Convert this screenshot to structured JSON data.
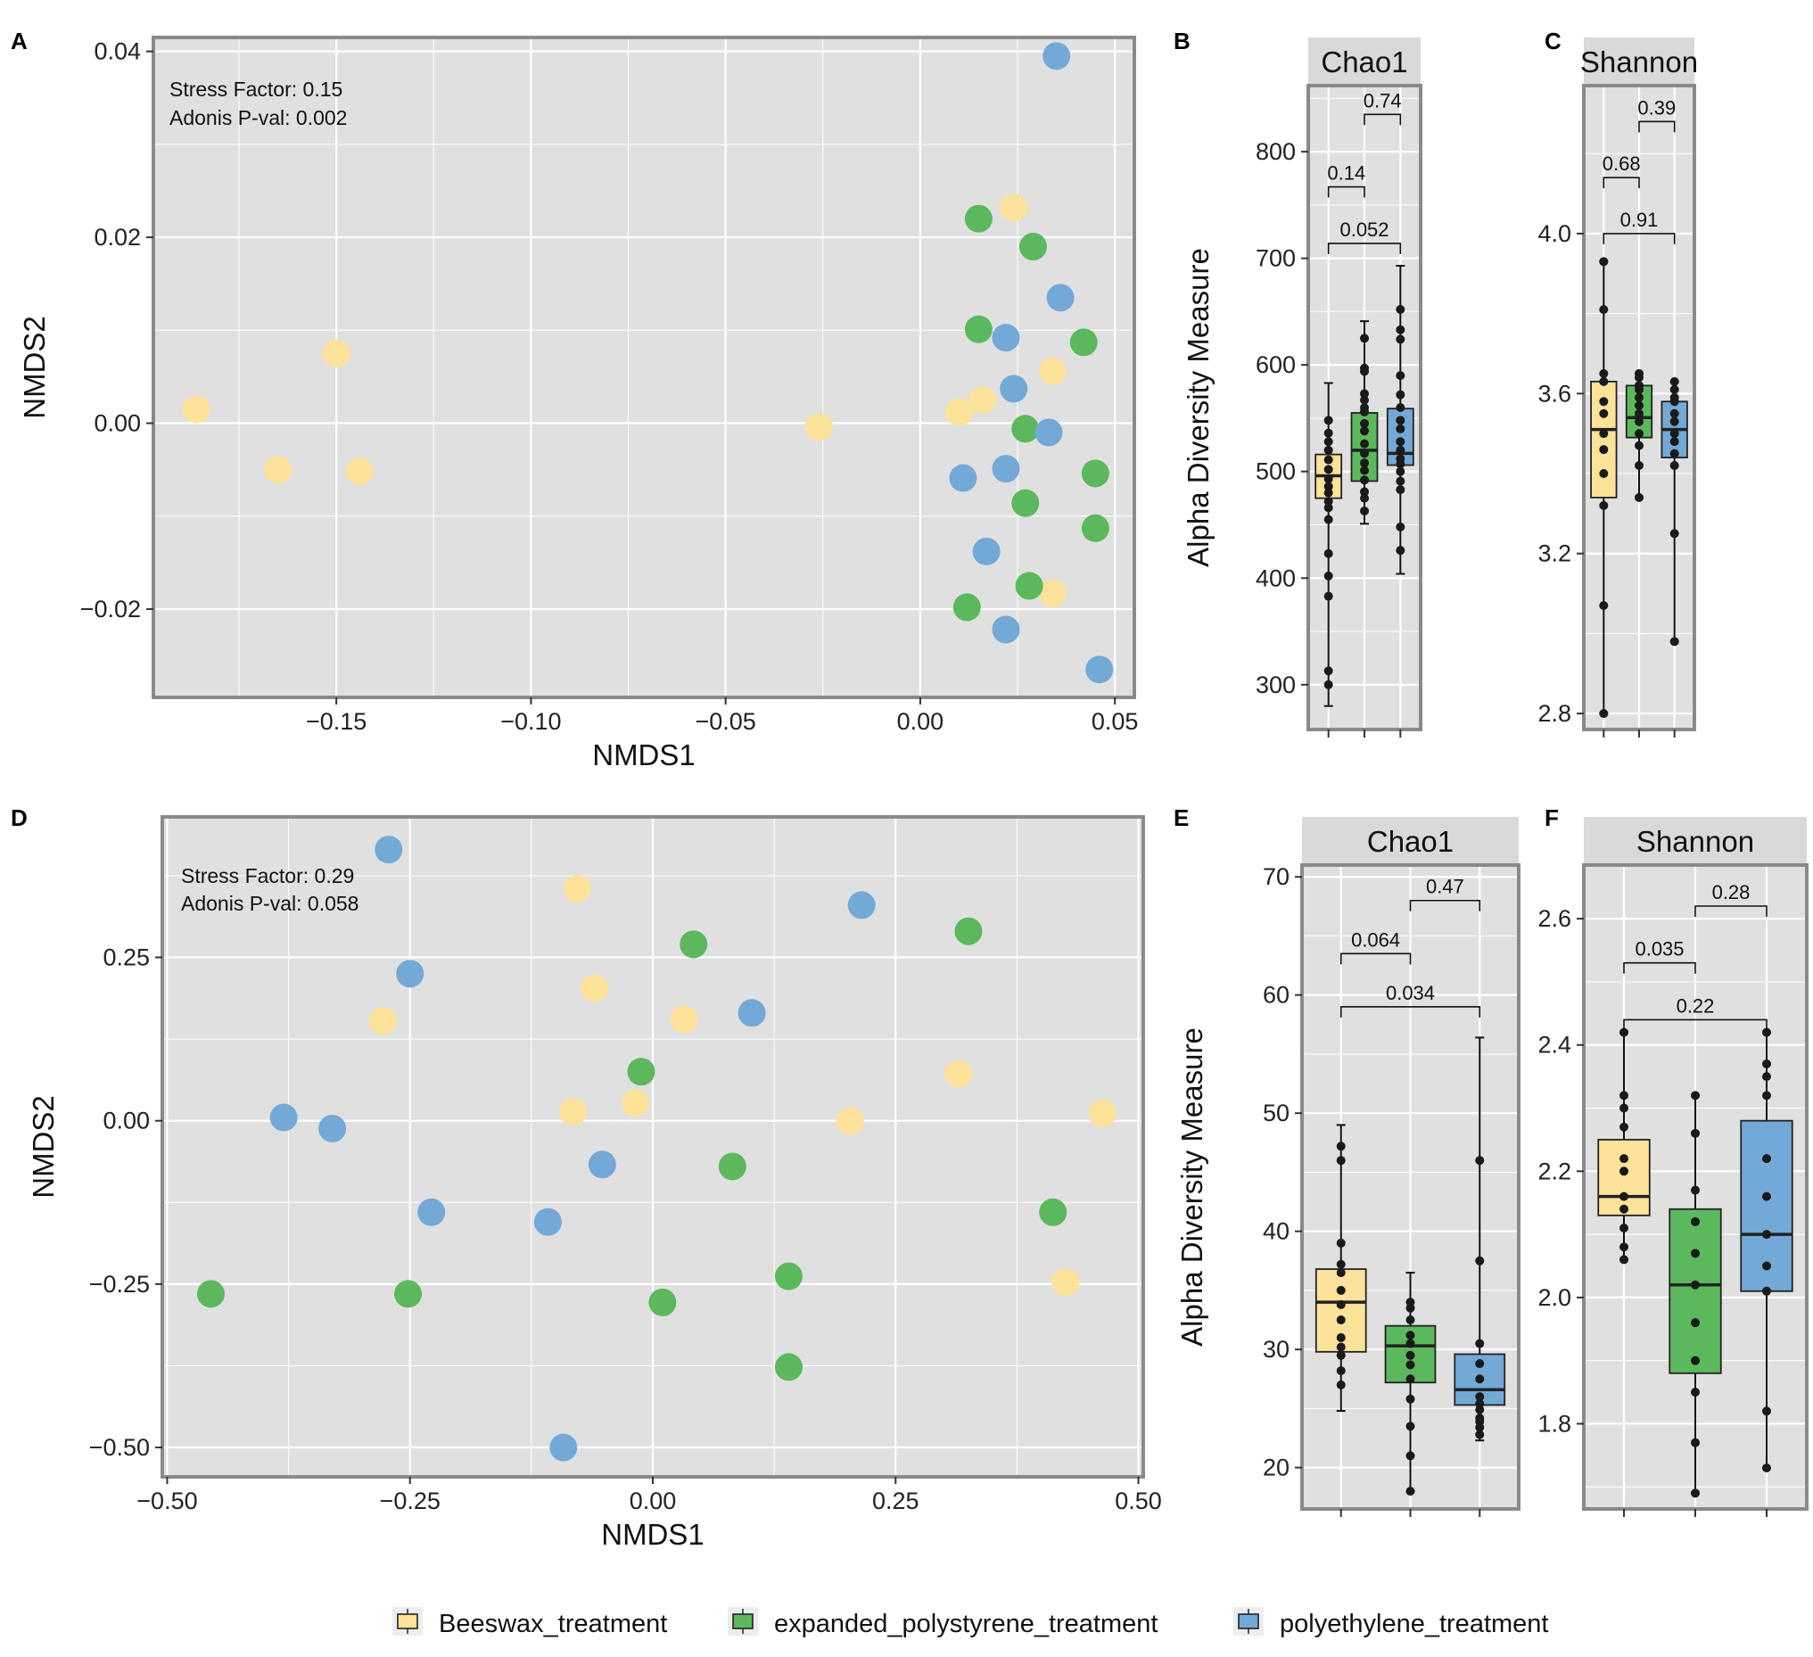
{
  "colors": {
    "Beeswax_treatment": "#FDE29A",
    "expanded_polystyrene_treatment": "#5CB85C",
    "polyethylene_treatment": "#73A9D6",
    "panel_bg": "#E0E0E0",
    "grid": "#FFFFFF",
    "border": "#8A8A8A",
    "strip_bg": "#D9D9D9"
  },
  "legend": {
    "items": [
      {
        "key": "Beeswax_treatment",
        "label": "Beeswax_treatment"
      },
      {
        "key": "expanded_polystyrene_treatment",
        "label": "expanded_polystyrene_treatment"
      },
      {
        "key": "polyethylene_treatment",
        "label": "polyethylene_treatment"
      }
    ]
  },
  "chart_data": [
    {
      "id": "A",
      "panel_label": "A",
      "type": "scatter",
      "xlabel": "NMDS1",
      "ylabel": "NMDS2",
      "xlim": [
        -0.197,
        0.055
      ],
      "ylim": [
        -0.0295,
        0.0415
      ],
      "xticks": [
        -0.15,
        -0.1,
        -0.05,
        0.0,
        0.05
      ],
      "xticklabels": [
        "−0.15",
        "−0.10",
        "−0.05",
        "0.00",
        "0.05"
      ],
      "yticks": [
        -0.02,
        0.0,
        0.02,
        0.04
      ],
      "yticklabels": [
        "−0.02",
        "0.00",
        "0.02",
        "0.04"
      ],
      "annotations": [
        "Stress Factor: 0.15",
        "Adonis P-val: 0.002"
      ],
      "series": [
        {
          "name": "Beeswax_treatment",
          "points": [
            [
              -0.186,
              0.0015
            ],
            [
              -0.165,
              -0.005
            ],
            [
              -0.15,
              0.0075
            ],
            [
              -0.144,
              -0.0052
            ],
            [
              -0.026,
              -0.0004
            ],
            [
              0.01,
              0.0012
            ],
            [
              0.016,
              0.0025
            ],
            [
              0.024,
              0.0232
            ],
            [
              0.034,
              0.0056
            ],
            [
              0.034,
              -0.0183
            ]
          ]
        },
        {
          "name": "expanded_polystyrene_treatment",
          "points": [
            [
              0.015,
              0.022
            ],
            [
              0.029,
              0.019
            ],
            [
              0.015,
              0.0101
            ],
            [
              0.042,
              0.0087
            ],
            [
              0.027,
              -0.0006
            ],
            [
              0.045,
              -0.0054
            ],
            [
              0.027,
              -0.0086
            ],
            [
              0.045,
              -0.0113
            ],
            [
              0.028,
              -0.0175
            ],
            [
              0.012,
              -0.0198
            ]
          ]
        },
        {
          "name": "polyethylene_treatment",
          "points": [
            [
              0.035,
              0.0395
            ],
            [
              0.036,
              0.0135
            ],
            [
              0.022,
              0.0092
            ],
            [
              0.024,
              0.0037
            ],
            [
              0.033,
              -0.001
            ],
            [
              0.011,
              -0.0059
            ],
            [
              0.022,
              -0.0049
            ],
            [
              0.017,
              -0.0138
            ],
            [
              0.022,
              -0.0222
            ],
            [
              0.046,
              -0.0265
            ]
          ]
        }
      ]
    },
    {
      "id": "B",
      "panel_label": "B",
      "type": "box",
      "strip": "Chao1",
      "ylabel": "Alpha Diversity Measure",
      "ylim": [
        258,
        862
      ],
      "yticks": [
        300,
        400,
        500,
        600,
        700,
        800
      ],
      "yticklabels": [
        "300",
        "400",
        "500",
        "600",
        "700",
        "800"
      ],
      "boxes": [
        {
          "group": "Beeswax_treatment",
          "q1": 475,
          "median": 496,
          "q3": 516,
          "low": 280,
          "high": 583,
          "points": [
            300,
            313,
            383,
            402,
            423,
            455,
            466,
            472,
            480,
            486,
            493,
            502,
            511,
            520,
            528,
            536,
            548
          ]
        },
        {
          "group": "expanded_polystyrene_treatment",
          "q1": 491,
          "median": 520,
          "q3": 555,
          "low": 451,
          "high": 641,
          "points": [
            463,
            475,
            481,
            492,
            501,
            508,
            517,
            526,
            538,
            545,
            556,
            560,
            567,
            573,
            594,
            597,
            625
          ]
        },
        {
          "group": "polyethylene_treatment",
          "q1": 506,
          "median": 517,
          "q3": 559,
          "low": 404,
          "high": 693,
          "points": [
            426,
            448,
            483,
            491,
            500,
            507,
            512,
            520,
            528,
            540,
            548,
            560,
            572,
            590,
            624,
            633,
            652
          ]
        }
      ],
      "comparisons": [
        {
          "label": "0.14",
          "from": 0,
          "to": 1,
          "y": 767
        },
        {
          "label": "0.74",
          "from": 1,
          "to": 2,
          "y": 835
        },
        {
          "label": "0.052",
          "from": 0,
          "to": 2,
          "y": 714
        }
      ]
    },
    {
      "id": "C",
      "panel_label": "C",
      "type": "box",
      "strip": "Shannon",
      "ylabel": "",
      "ylim": [
        2.76,
        4.37
      ],
      "yticks": [
        2.8,
        3.2,
        3.6,
        4.0
      ],
      "yticklabels": [
        "2.8",
        "3.2",
        "3.6",
        "4.0"
      ],
      "boxes": [
        {
          "group": "Beeswax_treatment",
          "q1": 3.34,
          "median": 3.51,
          "q3": 3.63,
          "low": 2.8,
          "high": 3.93,
          "points": [
            2.8,
            3.07,
            3.32,
            3.4,
            3.46,
            3.5,
            3.55,
            3.58,
            3.63,
            3.65,
            3.81,
            3.93
          ]
        },
        {
          "group": "expanded_polystyrene_treatment",
          "q1": 3.49,
          "median": 3.54,
          "q3": 3.62,
          "low": 3.34,
          "high": 3.65,
          "points": [
            3.34,
            3.42,
            3.47,
            3.5,
            3.53,
            3.55,
            3.57,
            3.59,
            3.61,
            3.62,
            3.64,
            3.65
          ]
        },
        {
          "group": "polyethylene_treatment",
          "q1": 3.44,
          "median": 3.51,
          "q3": 3.58,
          "low": 2.98,
          "high": 3.63,
          "points": [
            2.98,
            3.25,
            3.42,
            3.45,
            3.48,
            3.5,
            3.53,
            3.55,
            3.58,
            3.59,
            3.61,
            3.63
          ]
        }
      ],
      "comparisons": [
        {
          "label": "0.68",
          "from": 0,
          "to": 1,
          "y": 4.14
        },
        {
          "label": "0.39",
          "from": 1,
          "to": 2,
          "y": 4.28
        },
        {
          "label": "0.91",
          "from": 0,
          "to": 2,
          "y": 4.0
        }
      ]
    },
    {
      "id": "D",
      "panel_label": "D",
      "type": "scatter",
      "xlabel": "NMDS1",
      "ylabel": "NMDS2",
      "xlim": [
        -0.505,
        0.505
      ],
      "ylim": [
        -0.545,
        0.465
      ],
      "xticks": [
        -0.5,
        -0.25,
        0.0,
        0.25,
        0.5
      ],
      "xticklabels": [
        "−0.50",
        "−0.25",
        "0.00",
        "0.25",
        "0.50"
      ],
      "yticks": [
        -0.5,
        -0.25,
        0.0,
        0.25
      ],
      "yticklabels": [
        "−0.50",
        "−0.25",
        "0.00",
        "0.25"
      ],
      "annotations": [
        "Stress Factor: 0.29",
        "Adonis P-val: 0.058"
      ],
      "series": [
        {
          "name": "Beeswax_treatment",
          "points": [
            [
              -0.078,
              0.355
            ],
            [
              -0.06,
              0.203
            ],
            [
              -0.278,
              0.153
            ],
            [
              0.032,
              0.155
            ],
            [
              -0.082,
              0.014
            ],
            [
              -0.018,
              0.027
            ],
            [
              0.203,
              0.0
            ],
            [
              0.315,
              0.072
            ],
            [
              0.463,
              0.011
            ],
            [
              0.425,
              -0.247
            ]
          ]
        },
        {
          "name": "expanded_polystyrene_treatment",
          "points": [
            [
              0.042,
              0.27
            ],
            [
              0.325,
              0.29
            ],
            [
              -0.012,
              0.075
            ],
            [
              0.082,
              -0.07
            ],
            [
              0.412,
              -0.14
            ],
            [
              -0.455,
              -0.265
            ],
            [
              -0.252,
              -0.265
            ],
            [
              0.01,
              -0.278
            ],
            [
              0.14,
              -0.238
            ],
            [
              0.14,
              -0.377
            ]
          ]
        },
        {
          "name": "polyethylene_treatment",
          "points": [
            [
              -0.272,
              0.415
            ],
            [
              0.215,
              0.33
            ],
            [
              -0.25,
              0.225
            ],
            [
              0.102,
              0.165
            ],
            [
              -0.38,
              0.005
            ],
            [
              -0.33,
              -0.012
            ],
            [
              -0.052,
              -0.067
            ],
            [
              -0.228,
              -0.14
            ],
            [
              -0.108,
              -0.155
            ],
            [
              -0.092,
              -0.5
            ]
          ]
        }
      ]
    },
    {
      "id": "E",
      "panel_label": "E",
      "type": "box",
      "strip": "Chao1",
      "ylabel": "Alpha Diversity Measure",
      "ylim": [
        16.5,
        71
      ],
      "yticks": [
        20,
        30,
        40,
        50,
        60,
        70
      ],
      "yticklabels": [
        "20",
        "30",
        "40",
        "50",
        "60",
        "70"
      ],
      "boxes": [
        {
          "group": "Beeswax_treatment",
          "q1": 29.8,
          "median": 34.0,
          "q3": 36.8,
          "low": 24.8,
          "high": 49.0,
          "points": [
            27.0,
            28.2,
            29.5,
            30.2,
            31.0,
            32.5,
            33.8,
            35.0,
            36.5,
            37.2,
            39.0,
            46.0,
            47.2
          ]
        },
        {
          "group": "expanded_polystyrene_treatment",
          "q1": 27.2,
          "median": 30.3,
          "q3": 32.0,
          "low": 18.0,
          "high": 36.5,
          "points": [
            18.0,
            21.0,
            23.5,
            25.8,
            27.5,
            28.7,
            29.5,
            30.5,
            31.2,
            32.5,
            33.5,
            34.0
          ]
        },
        {
          "group": "polyethylene_treatment",
          "q1": 25.3,
          "median": 26.6,
          "q3": 29.6,
          "low": 22.3,
          "high": 56.4,
          "points": [
            22.8,
            23.4,
            23.9,
            24.2,
            24.9,
            25.4,
            26.0,
            27.5,
            28.8,
            30.5,
            37.5,
            46.0
          ]
        }
      ],
      "comparisons": [
        {
          "label": "0.064",
          "from": 0,
          "to": 1,
          "y": 63.5
        },
        {
          "label": "0.47",
          "from": 1,
          "to": 2,
          "y": 68.0
        },
        {
          "label": "0.034",
          "from": 0,
          "to": 2,
          "y": 59.0
        }
      ]
    },
    {
      "id": "F",
      "panel_label": "F",
      "type": "box",
      "strip": "Shannon",
      "ylabel": "",
      "ylim": [
        1.665,
        2.685
      ],
      "yticks": [
        1.8,
        2.0,
        2.2,
        2.4,
        2.6
      ],
      "yticklabels": [
        "1.8",
        "2.0",
        "2.2",
        "2.4",
        "2.6"
      ],
      "boxes": [
        {
          "group": "Beeswax_treatment",
          "q1": 2.13,
          "median": 2.16,
          "q3": 2.25,
          "low": 2.06,
          "high": 2.42,
          "points": [
            2.06,
            2.08,
            2.11,
            2.14,
            2.16,
            2.2,
            2.22,
            2.27,
            2.3,
            2.32,
            2.42
          ]
        },
        {
          "group": "expanded_polystyrene_treatment",
          "q1": 1.88,
          "median": 2.02,
          "q3": 2.14,
          "low": 1.69,
          "high": 2.32,
          "points": [
            1.69,
            1.77,
            1.85,
            1.9,
            1.96,
            2.02,
            2.07,
            2.12,
            2.17,
            2.26,
            2.32
          ]
        },
        {
          "group": "polyethylene_treatment",
          "q1": 2.01,
          "median": 2.1,
          "q3": 2.28,
          "low": 1.73,
          "high": 2.42,
          "points": [
            1.73,
            1.82,
            2.01,
            2.05,
            2.1,
            2.16,
            2.22,
            2.32,
            2.35,
            2.37,
            2.42
          ]
        }
      ],
      "comparisons": [
        {
          "label": "0.035",
          "from": 0,
          "to": 1,
          "y": 2.53
        },
        {
          "label": "0.28",
          "from": 1,
          "to": 2,
          "y": 2.62
        },
        {
          "label": "0.22",
          "from": 0,
          "to": 2,
          "y": 2.44
        }
      ]
    }
  ]
}
